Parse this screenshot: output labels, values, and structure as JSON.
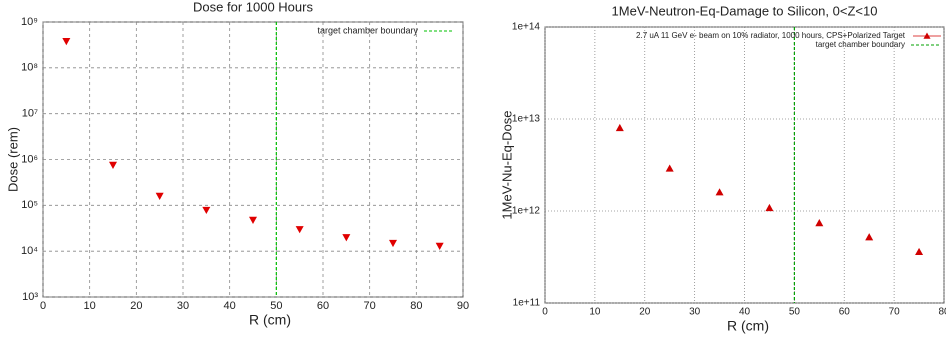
{
  "chart_data": [
    {
      "type": "scatter",
      "title": "Dose for 1000 Hours",
      "x_label": "R (cm)",
      "y_label": "Dose (rem)",
      "x": [
        5,
        15,
        25,
        35,
        45,
        55,
        65,
        75,
        85
      ],
      "series": [
        {
          "color": "#e00000",
          "marker": "triangle-down",
          "values": [
            380000000,
            760000,
            160000,
            79000,
            48000,
            30000,
            20000,
            15000,
            13000
          ]
        }
      ],
      "boundary": {
        "name": "target chamber boundary",
        "x": 50,
        "color": "#00c000"
      },
      "log_y": true,
      "grid": true,
      "xlim": [
        0,
        90
      ],
      "xticks": [
        0,
        10,
        20,
        30,
        40,
        50,
        60,
        70,
        80,
        90
      ],
      "ylim": [
        1000,
        1000000000
      ],
      "yticks": [
        {
          "value": 1000,
          "label": "10³"
        },
        {
          "value": 10000,
          "label": "10⁴"
        },
        {
          "value": 100000,
          "label": "10⁵"
        },
        {
          "value": 1000000,
          "label": "10⁶"
        },
        {
          "value": 10000000,
          "label": "10⁷"
        },
        {
          "value": 100000000,
          "label": "10⁸"
        },
        {
          "value": 1000000000,
          "label": "10⁹"
        }
      ]
    },
    {
      "type": "scatter",
      "title": "1MeV-Neutron-Eq-Damage to Silicon, 0<Z<10",
      "x_label": "R (cm)",
      "y_label": "1MeV-Nu-Eq-Dose",
      "x": [
        15,
        25,
        35,
        45,
        55,
        65,
        75
      ],
      "series": [
        {
          "name": "2.7 uA 11 GeV e- beam on 10% radiator, 1000 hours, CPS+Polarized Target",
          "color": "#d00000",
          "marker": "triangle-up",
          "values": [
            8000000000000,
            2900000000000,
            1600000000000,
            1080000000000,
            740000000000,
            520000000000,
            360000000000
          ]
        }
      ],
      "boundary": {
        "name": "target chamber boundary",
        "x": 50,
        "color": "#00a000"
      },
      "log_y": true,
      "grid": true,
      "xlim": [
        0,
        80
      ],
      "xticks": [
        0,
        10,
        20,
        30,
        40,
        50,
        60,
        70,
        80
      ],
      "ylim": [
        100000000000,
        100000000000000
      ],
      "yticks": [
        {
          "value": 100000000000,
          "label": "1e+11"
        },
        {
          "value": 1000000000000,
          "label": "1e+12"
        },
        {
          "value": 10000000000000,
          "label": "1e+13"
        },
        {
          "value": 100000000000000,
          "label": "1e+14"
        }
      ]
    }
  ]
}
